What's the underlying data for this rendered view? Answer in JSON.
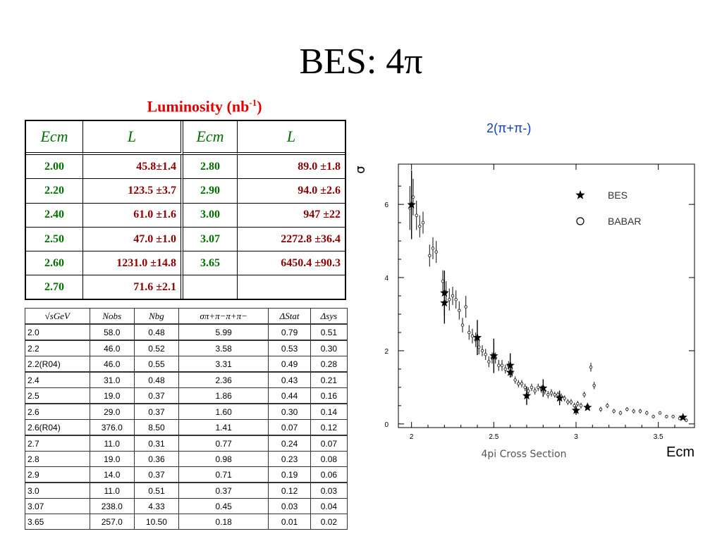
{
  "slide": {
    "title": "BES: 4π",
    "lum_caption": "Luminosity (nb",
    "lum_caption_sup": "-1",
    "lum_caption_end": ")"
  },
  "lum_table": {
    "headers": [
      "Ecm",
      "L",
      "Ecm",
      "L"
    ],
    "rows": [
      [
        "2.00",
        "45.8±1.4",
        "2.80",
        "89.0 ±1.8"
      ],
      [
        "2.20",
        "123.5 ±3.7",
        "2.90",
        "94.0 ±2.6"
      ],
      [
        "2.40",
        "61.0 ±1.6",
        "3.00",
        "947 ±22"
      ],
      [
        "2.50",
        "47.0 ±1.0",
        "3.07",
        "2272.8 ±36.4"
      ],
      [
        "2.60",
        "1231.0 ±14.8",
        "3.65",
        "6450.4 ±90.3"
      ],
      [
        "2.70",
        "71.6 ±2.1",
        "",
        ""
      ]
    ]
  },
  "data_table": {
    "headers": [
      "√sGeV",
      "Nobs",
      "Nbg",
      "σπ+π−π+π−",
      "ΔStat",
      "Δsys"
    ],
    "rows": [
      [
        "2.0",
        "58.0",
        "0.48",
        "5.99",
        "0.79",
        "0.51"
      ],
      [
        "2.2",
        "46.0",
        "0.52",
        "3.58",
        "0.53",
        "0.30"
      ],
      [
        "2.2(R04)",
        "46.0",
        "0.55",
        "3.31",
        "0.49",
        "0.28"
      ],
      [
        "2.4",
        "31.0",
        "0.48",
        "2.36",
        "0.43",
        "0.21"
      ],
      [
        "2.5",
        "19.0",
        "0.37",
        "1.86",
        "0.44",
        "0.16"
      ],
      [
        "2.6",
        "29.0",
        "0.37",
        "1.60",
        "0.30",
        "0.14"
      ],
      [
        "2.6(R04)",
        "376.0",
        "8.50",
        "1.41",
        "0.07",
        "0.12"
      ],
      [
        "2.7",
        "11.0",
        "0.31",
        "0.77",
        "0.24",
        "0.07"
      ],
      [
        "2.8",
        "19.0",
        "0.36",
        "0.98",
        "0.23",
        "0.08"
      ],
      [
        "2.9",
        "14.0",
        "0.37",
        "0.71",
        "0.19",
        "0.06"
      ],
      [
        "3.0",
        "11.0",
        "0.51",
        "0.37",
        "0.12",
        "0.03"
      ],
      [
        "3.07",
        "238.0",
        "4.33",
        "0.45",
        "0.03",
        "0.04"
      ],
      [
        "3.65",
        "257.0",
        "10.50",
        "0.18",
        "0.01",
        "0.02"
      ]
    ]
  },
  "chart_data": {
    "type": "scatter",
    "title": "2(π+π-)",
    "ylabel": "σ",
    "xlabel": "Ecm",
    "caption": "4pi Cross Section",
    "xlim": [
      1.92,
      3.72
    ],
    "ylim": [
      -0.1,
      7.1
    ],
    "xticks": [
      2,
      2.5,
      3,
      3.5
    ],
    "yticks": [
      0,
      2,
      4,
      6
    ],
    "legend": [
      {
        "name": "BES",
        "marker": "star"
      },
      {
        "name": "BABAR",
        "marker": "circle"
      }
    ],
    "legend_position": "top-right",
    "series": [
      {
        "name": "BES",
        "x": [
          2.0,
          2.2,
          2.2,
          2.4,
          2.5,
          2.6,
          2.6,
          2.7,
          2.8,
          2.9,
          3.0,
          3.07,
          3.65
        ],
        "y": [
          5.99,
          3.58,
          3.31,
          2.36,
          1.86,
          1.6,
          1.41,
          0.77,
          0.98,
          0.71,
          0.37,
          0.45,
          0.18
        ],
        "err": [
          0.94,
          0.61,
          0.57,
          0.48,
          0.47,
          0.33,
          0.14,
          0.25,
          0.24,
          0.2,
          0.12,
          0.05,
          0.02
        ]
      },
      {
        "name": "BABAR",
        "x": [
          1.99,
          2.01,
          2.03,
          2.05,
          2.07,
          2.11,
          2.13,
          2.15,
          2.19,
          2.21,
          2.23,
          2.25,
          2.27,
          2.29,
          2.31,
          2.33,
          2.35,
          2.37,
          2.39,
          2.41,
          2.43,
          2.45,
          2.47,
          2.49,
          2.51,
          2.53,
          2.55,
          2.57,
          2.59,
          2.61,
          2.63,
          2.65,
          2.67,
          2.69,
          2.71,
          2.73,
          2.75,
          2.77,
          2.79,
          2.81,
          2.83,
          2.85,
          2.87,
          2.89,
          2.91,
          2.93,
          2.95,
          2.97,
          2.99,
          3.01,
          3.03,
          3.05,
          3.07,
          3.09,
          3.11,
          3.15,
          3.19,
          3.23,
          3.27,
          3.31,
          3.35,
          3.39,
          3.43,
          3.47,
          3.51,
          3.55,
          3.59,
          3.63,
          3.67
        ],
        "y": [
          5.9,
          6.2,
          5.7,
          5.4,
          5.5,
          4.6,
          4.8,
          4.7,
          3.9,
          3.6,
          3.4,
          3.5,
          3.4,
          3.1,
          2.7,
          3.2,
          2.5,
          2.4,
          2.3,
          2.1,
          2.0,
          1.9,
          1.7,
          1.8,
          1.8,
          1.6,
          1.6,
          1.5,
          1.6,
          1.4,
          1.2,
          1.1,
          1.1,
          1.0,
          0.9,
          1.0,
          0.9,
          1.0,
          0.95,
          0.9,
          0.8,
          0.85,
          0.8,
          0.8,
          0.75,
          0.7,
          0.6,
          0.6,
          0.5,
          0.55,
          0.5,
          0.8,
          0.5,
          1.55,
          1.05,
          0.4,
          0.5,
          0.35,
          0.3,
          0.4,
          0.35,
          0.35,
          0.3,
          0.2,
          0.3,
          0.2,
          0.2,
          0.15,
          0.1
        ],
        "err": [
          0.6,
          0.5,
          0.4,
          0.3,
          0.3,
          0.3,
          0.3,
          0.3,
          0.3,
          0.3,
          0.3,
          0.25,
          0.25,
          0.25,
          0.2,
          0.3,
          0.2,
          0.2,
          0.2,
          0.2,
          0.15,
          0.15,
          0.15,
          0.15,
          0.15,
          0.15,
          0.15,
          0.12,
          0.12,
          0.12,
          0.1,
          0.1,
          0.1,
          0.1,
          0.1,
          0.1,
          0.1,
          0.1,
          0.1,
          0.1,
          0.1,
          0.1,
          0.08,
          0.08,
          0.08,
          0.08,
          0.08,
          0.08,
          0.08,
          0.08,
          0.08,
          0.08,
          0.08,
          0.12,
          0.1,
          0.07,
          0.07,
          0.06,
          0.06,
          0.06,
          0.06,
          0.06,
          0.06,
          0.05,
          0.05,
          0.05,
          0.05,
          0.05,
          0.05
        ]
      }
    ]
  }
}
